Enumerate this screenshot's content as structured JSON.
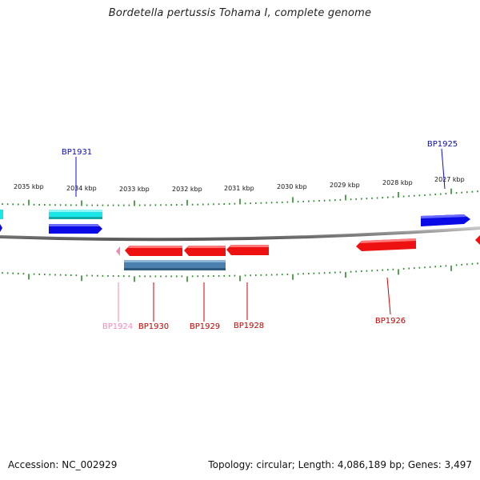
{
  "title": "Bordetella pertussis Tohama I, complete genome",
  "footer": {
    "accession": "Accession: NC_002929",
    "summary": "Topology: circular; Length: 4,086,189 bp; Genes: 3,497"
  },
  "colors": {
    "backbone": "#8a8a8a",
    "tick": "#2e8b2e",
    "forward": "#0a0ae6",
    "reverse": "#ee1111",
    "cyan": "#19e6e6",
    "steelblue": "#4a7fae",
    "pink": "#f28ab8"
  },
  "scale_labels": [
    "2035 kbp",
    "2034 kbp",
    "2033 kbp",
    "2032 kbp",
    "2031 kbp",
    "2030 kbp",
    "2029 kbp",
    "2028 kbp",
    "2027 kbp"
  ],
  "gene_labels": {
    "bp1931": "BP1931",
    "bp1925": "BP1925",
    "bp24": "BP1924",
    "bp1930": "BP1930",
    "bp1929": "BP1929",
    "bp1928": "BP1928",
    "bp1926": "BP1926"
  }
}
